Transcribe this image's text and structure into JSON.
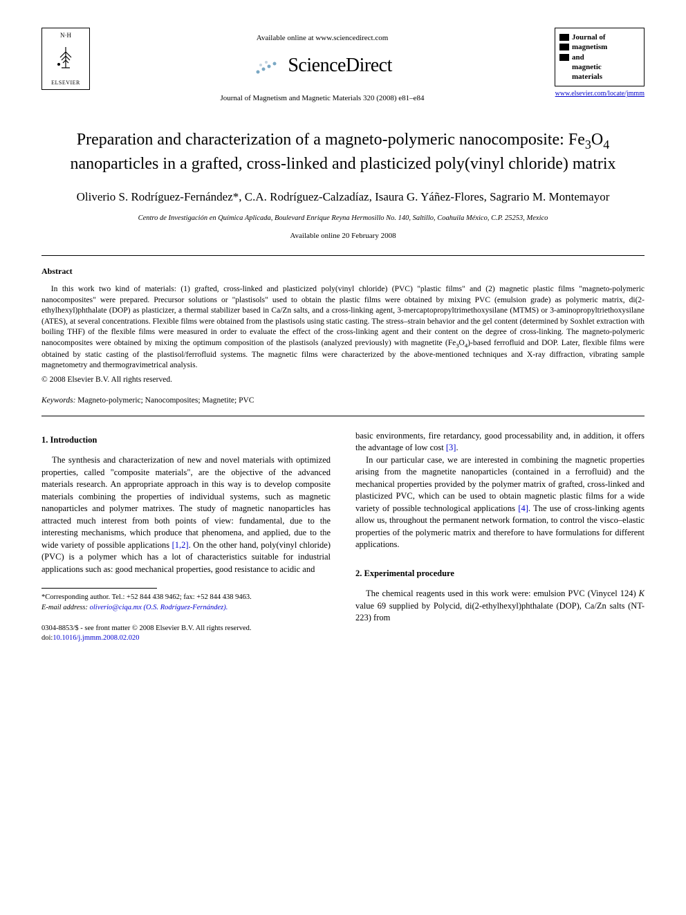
{
  "header": {
    "publisher_initials": "N·H",
    "publisher_name": "ELSEVIER",
    "available_online": "Available online at www.sciencedirect.com",
    "sciencedirect": "ScienceDirect",
    "journal_ref": "Journal of Magnetism and Magnetic Materials 320 (2008) e81–e84",
    "journal_logo_lines": [
      "Journal of",
      "magnetism",
      "and",
      "magnetic",
      "materials"
    ],
    "journal_url": "www.elsevier.com/locate/jmmm"
  },
  "article": {
    "title_html": "Preparation and characterization of a magneto-polymeric nanocomposite: Fe<sub>3</sub>O<sub>4</sub> nanoparticles in a grafted, cross-linked and plasticized poly(vinyl chloride) matrix",
    "authors": "Oliverio S. Rodríguez-Fernández*, C.A. Rodríguez-Calzadíaz, Isaura G. Yáñez-Flores, Sagrario M. Montemayor",
    "affiliation": "Centro de Investigación en Química Aplicada, Boulevard Enrique Reyna Hermosillo No. 140, Saltillo, Coahuila México, C.P. 25253, Mexico",
    "pub_date": "Available online 20 February 2008"
  },
  "abstract": {
    "heading": "Abstract",
    "body_html": "In this work two kind of materials: (1) grafted, cross-linked and plasticized poly(vinyl chloride) (PVC) \"plastic films\" and (2) magnetic plastic films \"magneto-polymeric nanocomposites\" were prepared. Precursor solutions or \"plastisols\" used to obtain the plastic films were obtained by mixing PVC (emulsion grade) as polymeric matrix, di(2-ethylhexyl)phthalate (DOP) as plasticizer, a thermal stabilizer based in Ca/Zn salts, and a cross-linking agent, 3-mercaptopropyltrimethoxysilane (MTMS) or 3-aminopropyltriethoxysilane (ATES), at several concentrations. Flexible films were obtained from the plastisols using static casting. The stress–strain behavior and the gel content (determined by Soxhlet extraction with boiling THF) of the flexible films were measured in order to evaluate the effect of the cross-linking agent and their content on the degree of cross-linking. The magneto-polymeric nanocomposites were obtained by mixing the optimum composition of the plastisols (analyzed previously) with magnetite (Fe<sub>3</sub>O<sub>4</sub>)-based ferrofluid and DOP. Later, flexible films were obtained by static casting of the plastisol/ferrofluid systems. The magnetic films were characterized by the above-mentioned techniques and X-ray diffraction, vibrating sample magnetometry and thermogravimetrical analysis.",
    "copyright": "© 2008 Elsevier B.V. All rights reserved.",
    "keywords_label": "Keywords:",
    "keywords": "Magneto-polymeric; Nanocomposites; Magnetite; PVC"
  },
  "sections": {
    "intro_head": "1.  Introduction",
    "intro_p1_html": "The synthesis and characterization of new and novel materials with optimized properties, called \"composite materials\", are the objective of the advanced materials research. An appropriate approach in this way is to develop composite materials combining the properties of individual systems, such as magnetic nanoparticles and polymer matrixes. The study of magnetic nanoparticles has attracted much interest from both points of view: fundamental, due to the interesting mechanisms, which produce that phenomena, and applied, due to the wide variety of possible applications <span class=\"ref-link\">[1,2]</span>. On the other hand, poly(vinyl chloride) (PVC) is a polymer which has a lot of characteristics suitable for industrial applications such as: good mechanical properties, good resistance to acidic and",
    "intro_p2_html": "basic environments, fire retardancy, good processability and, in addition, it offers the advantage of low cost <span class=\"ref-link\">[3]</span>.",
    "intro_p3_html": "In our particular case, we are interested in combining the magnetic properties arising from the magnetite nanoparticles (contained in a ferrofluid) and the mechanical properties provided by the polymer matrix of grafted, cross-linked and plasticized PVC, which can be used to obtain magnetic plastic films for a wide variety of possible technological applications <span class=\"ref-link\">[4]</span>. The use of cross-linking agents allow us, throughout the permanent network formation, to control the visco–elastic properties of the polymeric matrix and therefore to have formulations for different applications.",
    "exp_head": "2.  Experimental procedure",
    "exp_p1_html": "The chemical reagents used in this work were: emulsion PVC (Vinycel 124) <i>K</i> value 69 supplied by Polycid, di(2-ethylhexyl)phthalate (DOP), Ca/Zn salts (NT-223) from"
  },
  "footnote": {
    "corresponding": "*Corresponding author. Tel.: +52 844 438 9462; fax: +52 844 438 9463.",
    "email_label": "E-mail address:",
    "email": "oliverio@ciqa.mx (O.S. Rodríguez-Fernández)."
  },
  "footer": {
    "issn_line": "0304-8853/$ - see front matter © 2008 Elsevier B.V. All rights reserved.",
    "doi_prefix": "doi:",
    "doi": "10.1016/j.jmmm.2008.02.020"
  },
  "colors": {
    "text": "#000000",
    "link": "#0000cc",
    "background": "#ffffff"
  }
}
